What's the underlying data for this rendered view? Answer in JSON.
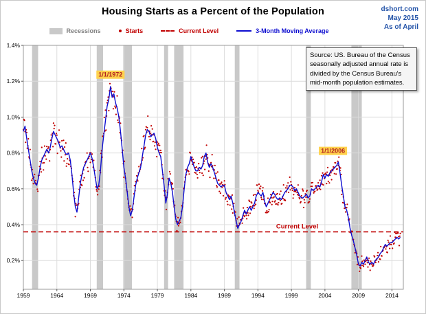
{
  "header": {
    "title": "Housing Starts as a Percent of the Population",
    "brand": "dshort.com",
    "date": "May 2015",
    "asof": "As of April"
  },
  "legend": [
    {
      "label": "Recessions",
      "color": "#7f7f7f",
      "swatch": "band"
    },
    {
      "label": "Starts",
      "color": "#c00000",
      "swatch": "dot"
    },
    {
      "label": "Current Level",
      "color": "#c00000",
      "swatch": "dash"
    },
    {
      "label": "3-Month Moving Average",
      "color": "#0d0dd0",
      "swatch": "line"
    }
  ],
  "source_note": "Source: US. Bureau of the Census seasonally adjusted annual rate is divided by the Census Bureau's mid-month population estimates.",
  "chart_data": {
    "type": "line",
    "title": "Housing Starts as a Percent of the Population",
    "xlabel": "",
    "ylabel": "",
    "grid": true,
    "legend_position": "top",
    "xlim": [
      1959,
      2015.7
    ],
    "ylim": [
      0.04,
      1.4
    ],
    "x_ticks": [
      1959,
      1964,
      1969,
      1974,
      1979,
      1984,
      1989,
      1994,
      1999,
      2004,
      2009,
      2014
    ],
    "y_ticks": [
      0.2,
      0.4,
      0.6,
      0.8,
      1.0,
      1.2,
      1.4
    ],
    "y_tick_suffix": "%",
    "colors": {
      "recession_band": "#c9c9c9",
      "gridline": "#dcdcdc",
      "plot_border": "#9a9a9a",
      "moving_average": "#0d0dd0",
      "starts": "#c00000",
      "current_level": "#c00000",
      "annotation_bg": "#ffd24d",
      "annotation_text": "#b22222"
    },
    "recessions": [
      [
        1960.3,
        1961.2
      ],
      [
        1969.95,
        1970.9
      ],
      [
        1973.9,
        1975.2
      ],
      [
        1980.0,
        1980.6
      ],
      [
        1981.5,
        1982.9
      ],
      [
        1990.55,
        1991.25
      ],
      [
        2001.2,
        2001.9
      ],
      [
        2007.95,
        2009.5
      ]
    ],
    "current_level": {
      "value": 0.36,
      "label": "Current Level",
      "color": "#c00000",
      "label_x": 2003
    },
    "annotations": [
      {
        "text": "1/1/1972",
        "x": 1972.0,
        "y": 1.225,
        "bg": "#ffd24d",
        "color": "#b22222"
      },
      {
        "text": "1/1/2006",
        "x": 2005.2,
        "y": 0.8,
        "bg": "#ffd24d",
        "color": "#b22222"
      }
    ],
    "series": [
      {
        "name": "3-Month Moving Average",
        "color": "#0d0dd0",
        "start": 1959,
        "step": 0.25,
        "values": [
          0.92,
          0.95,
          0.88,
          0.82,
          0.76,
          0.7,
          0.66,
          0.63,
          0.62,
          0.66,
          0.72,
          0.76,
          0.78,
          0.8,
          0.82,
          0.8,
          0.83,
          0.88,
          0.92,
          0.9,
          0.88,
          0.86,
          0.83,
          0.84,
          0.82,
          0.8,
          0.79,
          0.8,
          0.76,
          0.68,
          0.58,
          0.5,
          0.47,
          0.55,
          0.63,
          0.68,
          0.72,
          0.74,
          0.76,
          0.78,
          0.8,
          0.77,
          0.72,
          0.66,
          0.6,
          0.62,
          0.7,
          0.82,
          0.9,
          0.98,
          1.06,
          1.1,
          1.17,
          1.11,
          1.13,
          1.08,
          1.05,
          1.0,
          0.92,
          0.82,
          0.72,
          0.66,
          0.58,
          0.5,
          0.45,
          0.48,
          0.55,
          0.62,
          0.66,
          0.69,
          0.72,
          0.78,
          0.84,
          0.9,
          0.93,
          0.92,
          0.89,
          0.9,
          0.91,
          0.88,
          0.83,
          0.8,
          0.78,
          0.7,
          0.62,
          0.52,
          0.57,
          0.66,
          0.63,
          0.58,
          0.5,
          0.43,
          0.4,
          0.42,
          0.44,
          0.5,
          0.6,
          0.68,
          0.72,
          0.74,
          0.78,
          0.75,
          0.72,
          0.7,
          0.7,
          0.72,
          0.71,
          0.73,
          0.78,
          0.8,
          0.75,
          0.72,
          0.74,
          0.72,
          0.69,
          0.66,
          0.63,
          0.62,
          0.61,
          0.62,
          0.62,
          0.58,
          0.56,
          0.54,
          0.56,
          0.52,
          0.47,
          0.42,
          0.38,
          0.4,
          0.42,
          0.45,
          0.48,
          0.46,
          0.48,
          0.5,
          0.48,
          0.5,
          0.52,
          0.56,
          0.58,
          0.57,
          0.56,
          0.58,
          0.53,
          0.5,
          0.52,
          0.54,
          0.56,
          0.58,
          0.57,
          0.55,
          0.54,
          0.55,
          0.54,
          0.56,
          0.58,
          0.59,
          0.6,
          0.62,
          0.62,
          0.61,
          0.59,
          0.6,
          0.58,
          0.56,
          0.55,
          0.55,
          0.56,
          0.57,
          0.55,
          0.56,
          0.6,
          0.59,
          0.6,
          0.61,
          0.62,
          0.61,
          0.64,
          0.68,
          0.66,
          0.68,
          0.67,
          0.69,
          0.7,
          0.71,
          0.72,
          0.73,
          0.75,
          0.69,
          0.62,
          0.56,
          0.5,
          0.48,
          0.44,
          0.38,
          0.34,
          0.31,
          0.27,
          0.23,
          0.18,
          0.17,
          0.19,
          0.18,
          0.2,
          0.22,
          0.19,
          0.18,
          0.19,
          0.18,
          0.2,
          0.21,
          0.22,
          0.24,
          0.25,
          0.27,
          0.29,
          0.28,
          0.29,
          0.3,
          0.3,
          0.31,
          0.32,
          0.33,
          0.32,
          0.33
        ]
      }
    ],
    "scatter": {
      "name": "Starts",
      "color": "#c00000",
      "marker": "dot",
      "interval": "monthly",
      "jitter": 0.07
    }
  }
}
